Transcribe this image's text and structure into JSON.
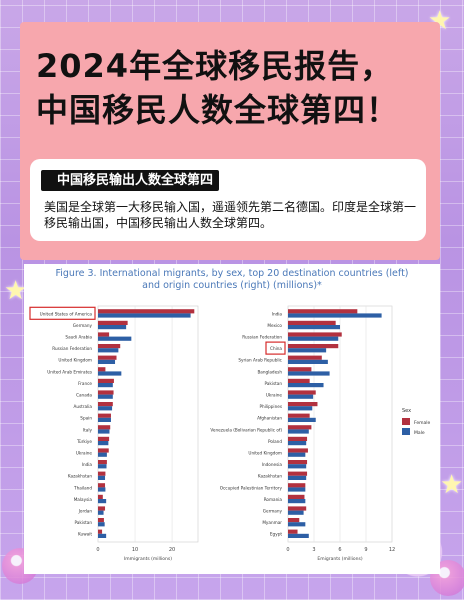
{
  "headline_lines": [
    "2024年全球移民报告，",
    "中国移民人数全球第四！"
  ],
  "info": {
    "pill": "中国移民输出人数全球第四",
    "desc": "美国是全球第一大移民输入国，遥遥领先第二名德国。印度是全球第一移民输出国，中国移民输出人数全球第四。"
  },
  "figure": {
    "title_line1": "Figure 3. International migrants, by sex, top 20 destination countries (left)",
    "title_line2": "and origin countries (right) (millions)*"
  },
  "colors": {
    "female": "#b2313f",
    "male": "#2d5fa5",
    "highlight": "#d62b2b"
  },
  "chart_data": [
    {
      "type": "bar",
      "orientation": "horizontal",
      "stacked": false,
      "categories": [
        "United States of America",
        "Germany",
        "Saudi Arabia",
        "Russian Federation",
        "United Kingdom",
        "United Arab Emirates",
        "France",
        "Canada",
        "Australia",
        "Spain",
        "Italy",
        "Türkiye",
        "Ukraine",
        "India",
        "Kazakhstan",
        "Thailand",
        "Malaysia",
        "Jordan",
        "Pakistan",
        "Kuwait"
      ],
      "series": [
        {
          "name": "Female",
          "values": [
            26,
            8,
            3,
            6,
            5,
            2,
            4.3,
            4.2,
            4,
            3.5,
            3.3,
            3,
            2.9,
            2.4,
            2,
            1.9,
            1.3,
            1.9,
            1.6,
            1.1
          ]
        },
        {
          "name": "Male",
          "values": [
            25,
            7.6,
            9,
            5.5,
            4.6,
            6.3,
            4,
            4,
            3.8,
            3.5,
            3.1,
            2.8,
            2.4,
            2.3,
            1.9,
            2,
            2.2,
            1.5,
            1.8,
            2.2
          ]
        }
      ],
      "highlight": "United States of America",
      "xlabel": "Immigrants (millions)",
      "xlim": [
        0,
        27
      ],
      "xticks": [
        0,
        10,
        20
      ]
    },
    {
      "type": "bar",
      "orientation": "horizontal",
      "stacked": false,
      "categories": [
        "India",
        "Mexico",
        "Russian Federation",
        "China",
        "Syrian Arab Republic",
        "Bangladesh",
        "Pakistan",
        "Ukraine",
        "Philippines",
        "Afghanistan",
        "Venezuela (Bolivarian Republic of)",
        "Poland",
        "United Kingdom",
        "Indonesia",
        "Kazakhstan",
        "Occupied Palestinian Territory",
        "Romania",
        "Germany",
        "Myanmar",
        "Egypt"
      ],
      "series": [
        {
          "name": "Female",
          "values": [
            8,
            5.5,
            6.2,
            5.8,
            3.9,
            2.7,
            2.5,
            3.2,
            3.4,
            2.5,
            2.7,
            2.2,
            2.3,
            2.2,
            2.2,
            2,
            1.9,
            2.1,
            1.3,
            1.1
          ]
        },
        {
          "name": "Male",
          "values": [
            10.8,
            6,
            5.8,
            4.4,
            4.6,
            4.8,
            4.1,
            2.9,
            2.8,
            3.2,
            2.4,
            2.1,
            2,
            2.1,
            2.1,
            2,
            2,
            1.8,
            2,
            2.4
          ]
        }
      ],
      "highlight": "China",
      "xlabel": "Emigrants (millions)",
      "xlim": [
        0,
        12
      ],
      "xticks": [
        0,
        3,
        6,
        9,
        12
      ]
    }
  ],
  "legend": {
    "title": "Sex",
    "items": [
      "Female",
      "Male"
    ]
  }
}
